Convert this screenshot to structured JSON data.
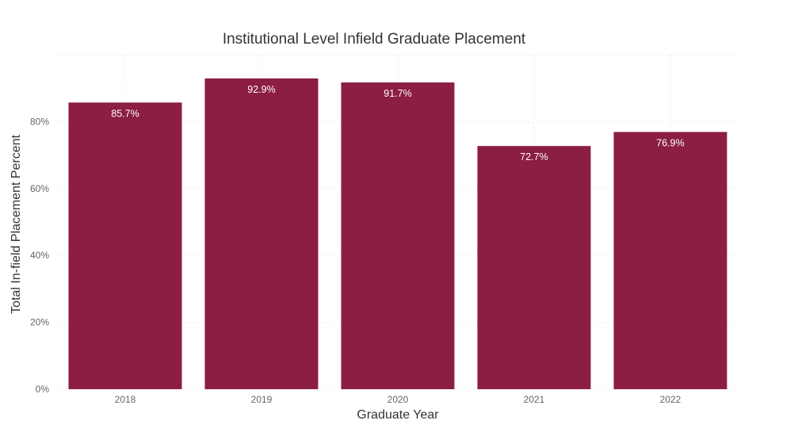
{
  "chart_data": {
    "type": "bar",
    "title": "Institutional Level Infield Graduate Placement",
    "xlabel": "Graduate Year",
    "ylabel": "Total In-field Placement Percent",
    "categories": [
      "2018",
      "2019",
      "2020",
      "2021",
      "2022"
    ],
    "values": [
      85.7,
      92.9,
      91.7,
      72.7,
      76.9
    ],
    "value_labels": [
      "85.7%",
      "92.9%",
      "91.7%",
      "72.7%",
      "76.9%"
    ],
    "yticks": [
      0,
      20,
      40,
      60,
      80
    ],
    "ytick_labels": [
      "0%",
      "20%",
      "40%",
      "60%",
      "80%"
    ],
    "ylim": [
      0,
      100
    ],
    "grid": true,
    "legend": false,
    "colors": {
      "bar": "#8b1e41",
      "bar_label": "#ffffff",
      "grid": "#dcdcdc"
    }
  }
}
